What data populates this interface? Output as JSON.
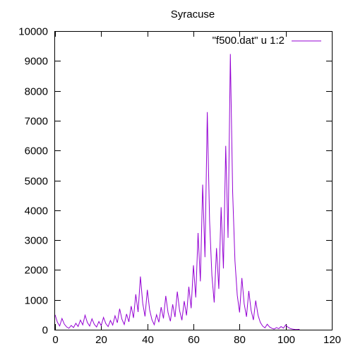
{
  "chart_data": {
    "type": "line",
    "title": "Syracuse",
    "xlabel": "",
    "ylabel": "",
    "xlim": [
      0,
      120
    ],
    "ylim": [
      0,
      10000
    ],
    "x_ticks": [
      0,
      20,
      40,
      60,
      80,
      100,
      120
    ],
    "y_ticks": [
      0,
      1000,
      2000,
      3000,
      4000,
      5000,
      6000,
      7000,
      8000,
      9000,
      10000
    ],
    "grid": false,
    "legend_position": "top-right",
    "series": [
      {
        "name": "\"f500.dat\" u 1:2",
        "color": "#9400d3",
        "x": [
          0,
          1,
          2,
          3,
          4,
          5,
          6,
          7,
          8,
          9,
          10,
          11,
          12,
          13,
          14,
          15,
          16,
          17,
          18,
          19,
          20,
          21,
          22,
          23,
          24,
          25,
          26,
          27,
          28,
          29,
          30,
          31,
          32,
          33,
          34,
          35,
          36,
          37,
          38,
          39,
          40,
          41,
          42,
          43,
          44,
          45,
          46,
          47,
          48,
          49,
          50,
          51,
          52,
          53,
          54,
          55,
          56,
          57,
          58,
          59,
          60,
          61,
          62,
          63,
          64,
          65,
          66,
          67,
          68,
          69,
          70,
          71,
          72,
          73,
          74,
          75,
          76,
          77,
          78,
          79,
          80,
          81,
          82,
          83,
          84,
          85,
          86,
          87,
          88,
          89,
          90,
          91,
          92,
          93,
          94,
          95,
          96,
          97,
          98,
          99,
          100,
          101,
          102,
          103,
          104,
          105,
          106
        ],
        "y": [
          500,
          250,
          125,
          376,
          188,
          94,
          47,
          142,
          71,
          214,
          107,
          322,
          161,
          484,
          242,
          121,
          364,
          182,
          91,
          274,
          137,
          412,
          206,
          103,
          310,
          155,
          466,
          233,
          700,
          350,
          175,
          526,
          263,
          790,
          395,
          1186,
          593,
          1780,
          890,
          445,
          1336,
          668,
          334,
          167,
          502,
          251,
          754,
          377,
          1132,
          566,
          283,
          850,
          425,
          1276,
          638,
          319,
          958,
          479,
          1438,
          719,
          2158,
          1079,
          3238,
          1619,
          4858,
          2429,
          7288,
          3644,
          1822,
          911,
          2734,
          1367,
          4102,
          2051,
          6154,
          3077,
          9232,
          4616,
          2308,
          1154,
          577,
          1732,
          866,
          433,
          1300,
          650,
          325,
          976,
          488,
          244,
          122,
          61,
          184,
          92,
          46,
          23,
          70,
          35,
          106,
          53,
          160,
          80,
          40,
          20,
          10,
          5,
          16
        ]
      }
    ]
  }
}
